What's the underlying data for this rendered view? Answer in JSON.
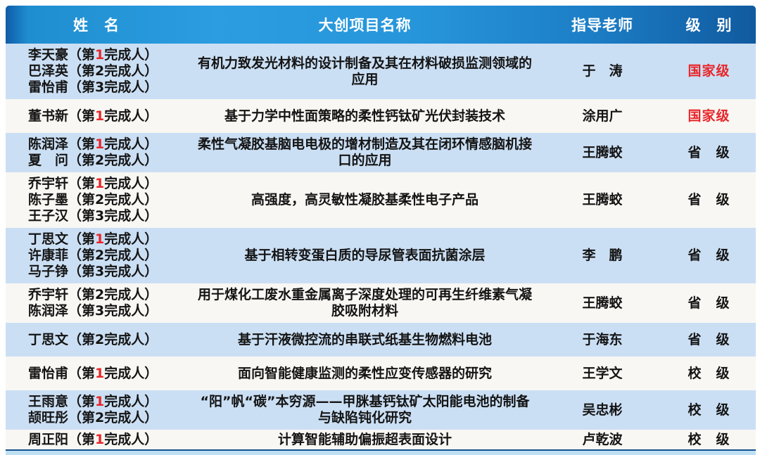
{
  "colors": {
    "header_blue_left": "#0f5ca8",
    "header_blue_mid": "#2b9de0",
    "header_blue_right": "#115a9f",
    "row_light_blue": "#cbdff4",
    "row_white": "#f9f7f3",
    "red": "#e8262a",
    "bottom_line_dark": "#16518f",
    "bottom_line_light": "#bfe0f2"
  },
  "header": {
    "columns": [
      {
        "key": "name",
        "label": "姓　名"
      },
      {
        "key": "project",
        "label": "大创项目名称"
      },
      {
        "key": "advisor",
        "label": "指导老师"
      },
      {
        "key": "level",
        "label": "级　别"
      }
    ]
  },
  "name_wrap": {
    "pre": "（第",
    "post": "完成人）"
  },
  "rows": [
    {
      "members": [
        {
          "name": "李天豪",
          "seq": "1",
          "red": true
        },
        {
          "name": "巴泽英",
          "seq": "2",
          "red": false
        },
        {
          "name": "雷怡甫",
          "seq": "3",
          "red": false
        }
      ],
      "project": "有机力致发光材料的设计制备及其在材料破损监测领域的应用",
      "advisor": "于　涛",
      "level": "国家级",
      "level_red": true
    },
    {
      "members": [
        {
          "name": "董书新",
          "seq": "1",
          "red": true
        }
      ],
      "project": "基于力学中性面策略的柔性钙钛矿光伏封装技术",
      "advisor": "涂用广",
      "level": "国家级",
      "level_red": true
    },
    {
      "members": [
        {
          "name": "陈润泽",
          "seq": "1",
          "red": true
        },
        {
          "name": "夏　问",
          "seq": "2",
          "red": false
        }
      ],
      "project": "柔性气凝胶基脑电电极的增材制造及其在闭环情感脑机接口的应用",
      "advisor": "王腾蛟",
      "level": "省　级",
      "level_red": false
    },
    {
      "members": [
        {
          "name": "乔宇轩",
          "seq": "1",
          "red": true
        },
        {
          "name": "陈子墨",
          "seq": "2",
          "red": false
        },
        {
          "name": "王子汉",
          "seq": "3",
          "red": false
        }
      ],
      "project": "高强度，高灵敏性凝胶基柔性电子产品",
      "advisor": "王腾蛟",
      "level": "省　级",
      "level_red": false
    },
    {
      "members": [
        {
          "name": "丁思文",
          "seq": "1",
          "red": true
        },
        {
          "name": "许康菲",
          "seq": "2",
          "red": false
        },
        {
          "name": "马子铮",
          "seq": "3",
          "red": false
        }
      ],
      "project": "基于相转变蛋白质的导尿管表面抗菌涂层",
      "advisor": "李　鹏",
      "level": "省　级",
      "level_red": false
    },
    {
      "members": [
        {
          "name": "乔宇轩",
          "seq": "2",
          "red": false
        },
        {
          "name": "陈润泽",
          "seq": "3",
          "red": false
        }
      ],
      "project": "用于煤化工废水重金属离子深度处理的可再生纤维素气凝胶吸附材料",
      "advisor": "王腾蛟",
      "level": "省　级",
      "level_red": false
    },
    {
      "members": [
        {
          "name": "丁思文",
          "seq": "2",
          "red": false
        }
      ],
      "project": "基于汗液微控流的串联式纸基生物燃料电池",
      "advisor": "于海东",
      "level": "省　级",
      "level_red": false
    },
    {
      "members": [
        {
          "name": "雷怡甫",
          "seq": "1",
          "red": true
        }
      ],
      "project": "面向智能健康监测的柔性应变传感器的研究",
      "advisor": "王学文",
      "level": "校　级",
      "level_red": false
    },
    {
      "members": [
        {
          "name": "王雨意",
          "seq": "1",
          "red": true
        },
        {
          "name": "颉旺彤",
          "seq": "2",
          "red": false
        }
      ],
      "project": "“阳”帆“碳”本穷源——甲脒基钙钛矿太阳能电池的制备与缺陷钝化研究",
      "advisor": "吴忠彬",
      "level": "校　级",
      "level_red": false
    },
    {
      "members": [
        {
          "name": "周正阳",
          "seq": "1",
          "red": true
        }
      ],
      "project": "计算智能辅助偏振超表面设计",
      "advisor": "卢乾波",
      "level": "校　级",
      "level_red": false
    }
  ]
}
